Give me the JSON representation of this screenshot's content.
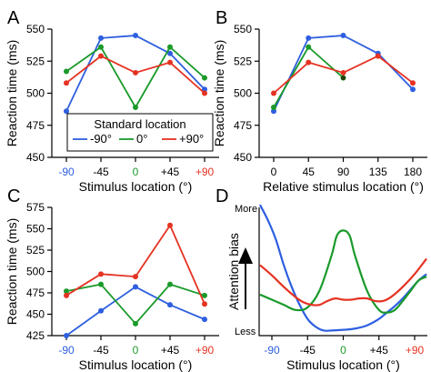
{
  "colors": {
    "blue": "#2e5fe0",
    "green": "#1a9a2a",
    "red": "#e53222",
    "axis": "#000000"
  },
  "chart_data": [
    {
      "panel_label": "A",
      "type": "line",
      "ylabel": "Reaction time (ms)",
      "xlabel": "Stimulus location (°)",
      "x": [
        -90,
        -45,
        0,
        45,
        90
      ],
      "x_tick_labels": [
        "-90",
        "-45",
        "0",
        "+45",
        "+90"
      ],
      "x_tick_label_colors": [
        "blue",
        "axis",
        "green",
        "axis",
        "red"
      ],
      "ylim": [
        450,
        550
      ],
      "y_ticks": [
        450,
        475,
        500,
        525,
        550
      ],
      "legend": {
        "title": "Standard location",
        "placement": "bottom-left",
        "entries": [
          {
            "series": "blue",
            "label": "-90°"
          },
          {
            "series": "green",
            "label": "0°"
          },
          {
            "series": "red",
            "label": "+90°"
          }
        ]
      },
      "series": [
        {
          "name": "-90°",
          "color": "blue",
          "values": [
            486,
            543,
            545,
            531,
            503
          ]
        },
        {
          "name": "0°",
          "color": "green",
          "values": [
            517,
            536,
            489,
            536,
            512
          ]
        },
        {
          "name": "+90°",
          "color": "red",
          "values": [
            508,
            529,
            516,
            524,
            500
          ]
        }
      ]
    },
    {
      "panel_label": "B",
      "type": "line",
      "ylabel": "Reaction time (ms)",
      "xlabel": "Relative stimulus location (°)",
      "x": [
        0,
        45,
        90,
        135,
        180
      ],
      "x_tick_labels": [
        "0",
        "45",
        "90",
        "135",
        "180"
      ],
      "ylim": [
        450,
        550
      ],
      "y_ticks": [
        450,
        475,
        500,
        525,
        550
      ],
      "series": [
        {
          "color": "blue",
          "x": [
            0,
            45,
            90,
            135,
            180
          ],
          "values": [
            486,
            543,
            545,
            531,
            503
          ]
        },
        {
          "color": "green",
          "x": [
            0,
            45,
            90
          ],
          "values": [
            489,
            536,
            512
          ]
        },
        {
          "color": "red",
          "x": [
            0,
            45,
            90,
            135,
            180
          ],
          "values": [
            500,
            524,
            516,
            529,
            508
          ]
        }
      ]
    },
    {
      "panel_label": "C",
      "type": "line",
      "ylabel": "Reaction time (ms)",
      "xlabel": "Stimulus location (°)",
      "x": [
        -90,
        -45,
        0,
        45,
        90
      ],
      "x_tick_labels": [
        "-90",
        "-45",
        "0",
        "+45",
        "+90"
      ],
      "x_tick_label_colors": [
        "blue",
        "axis",
        "green",
        "axis",
        "red"
      ],
      "ylim": [
        425,
        575
      ],
      "y_ticks": [
        425,
        450,
        475,
        500,
        525,
        550,
        575
      ],
      "series": [
        {
          "color": "blue",
          "values": [
            425,
            454,
            482,
            461,
            444
          ]
        },
        {
          "color": "green",
          "values": [
            477,
            485,
            439,
            485,
            472
          ]
        },
        {
          "color": "red",
          "values": [
            472,
            497,
            494,
            554,
            462
          ]
        }
      ]
    },
    {
      "panel_label": "D",
      "type": "line",
      "ylabel": "Attention bias",
      "y_top_label": "More",
      "y_bottom_label": "Less",
      "xlabel": "Stimulus location (°)",
      "x_tick_labels": [
        "-90",
        "-45",
        "0",
        "+45",
        "+90"
      ],
      "x_tick_label_colors": [
        "blue",
        "axis",
        "green",
        "axis",
        "red"
      ],
      "ylim": [
        0,
        1
      ],
      "series": [
        {
          "color": "blue",
          "x": [
            -105,
            -95,
            -85,
            -75,
            -65,
            -55,
            -45,
            -35,
            -25,
            -15,
            0,
            15,
            30,
            45,
            55,
            65,
            75,
            85,
            95,
            105
          ],
          "values": [
            1.02,
            0.9,
            0.75,
            0.55,
            0.38,
            0.24,
            0.13,
            0.07,
            0.04,
            0.04,
            0.045,
            0.055,
            0.08,
            0.13,
            0.18,
            0.23,
            0.29,
            0.36,
            0.43,
            0.48
          ]
        },
        {
          "color": "green",
          "x": [
            -105,
            -90,
            -75,
            -60,
            -45,
            -30,
            -15,
            -8,
            0,
            8,
            15,
            30,
            45,
            55,
            65,
            75,
            85,
            95,
            105
          ],
          "values": [
            0.32,
            0.28,
            0.24,
            0.2,
            0.22,
            0.35,
            0.62,
            0.78,
            0.82,
            0.78,
            0.62,
            0.35,
            0.2,
            0.18,
            0.2,
            0.27,
            0.35,
            0.43,
            0.46
          ]
        },
        {
          "color": "red",
          "x": [
            -105,
            -90,
            -75,
            -60,
            -50,
            -40,
            -30,
            -20,
            -10,
            0,
            10,
            20,
            30,
            40,
            50,
            60,
            75,
            90,
            105
          ],
          "values": [
            0.55,
            0.47,
            0.38,
            0.3,
            0.26,
            0.24,
            0.24,
            0.27,
            0.29,
            0.28,
            0.28,
            0.29,
            0.29,
            0.27,
            0.27,
            0.3,
            0.38,
            0.48,
            0.6
          ]
        }
      ]
    }
  ]
}
